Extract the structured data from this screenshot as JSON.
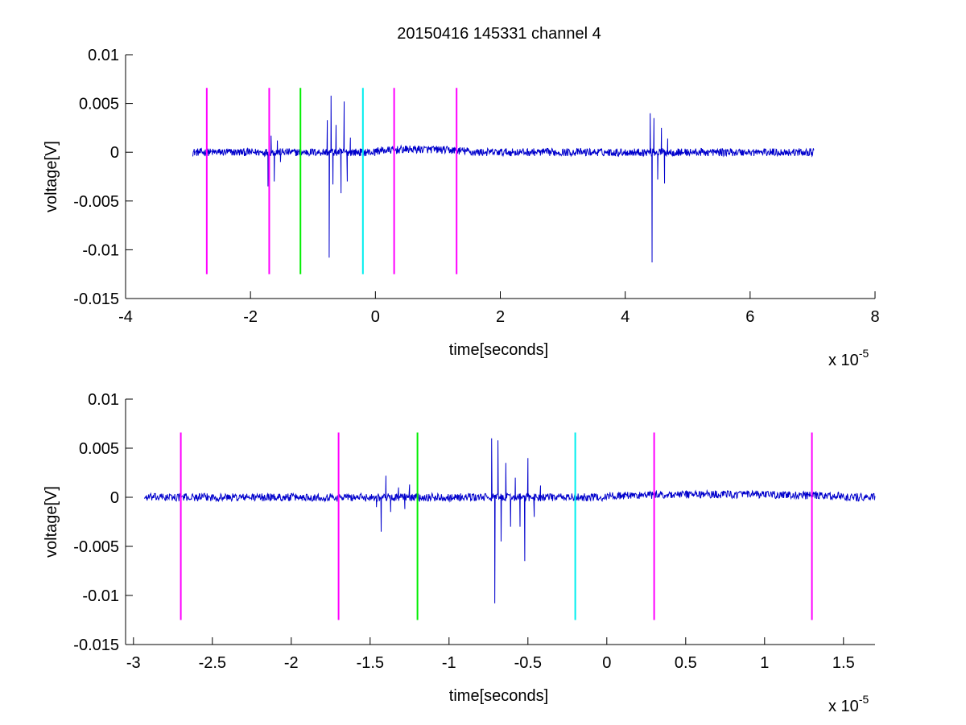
{
  "title": "20150416 145331 channel 4",
  "colors": {
    "signal": "#0000cc",
    "magenta": "#ff00ff",
    "green": "#00ee00",
    "cyan": "#00eeee",
    "axes": "#000000"
  },
  "chart_data": [
    {
      "type": "line",
      "title": "20150416 145331 channel 4",
      "xlabel": "time[seconds]",
      "ylabel": "voltage[V]",
      "x_multiplier_label": "x 10",
      "x_multiplier_exponent": "-5",
      "xlim": [
        -4,
        8
      ],
      "ylim": [
        -0.015,
        0.01
      ],
      "xticks": [
        -4,
        -2,
        0,
        2,
        4,
        6,
        8
      ],
      "xtick_labels": [
        "-4",
        "-2",
        "0",
        "2",
        "4",
        "6",
        "8"
      ],
      "yticks": [
        0.01,
        0.005,
        0,
        -0.005,
        -0.01,
        -0.015
      ],
      "ytick_labels": [
        "0.01",
        "0.005",
        "0",
        "-0.005",
        "-0.01",
        "-0.015"
      ],
      "grid": false,
      "signal_range": [
        -2.93,
        7.02
      ],
      "bursts": [
        {
          "x": -1.6,
          "peaks": [
            [
              -1.72,
              -0.0035
            ],
            [
              -1.67,
              0.0017
            ],
            [
              -1.62,
              -0.003
            ],
            [
              -1.57,
              0.0012
            ],
            [
              -1.52,
              -0.001
            ]
          ]
        },
        {
          "x": -0.7,
          "peaks": [
            [
              -0.77,
              0.0033
            ],
            [
              -0.74,
              -0.0108
            ],
            [
              -0.71,
              0.0058
            ],
            [
              -0.68,
              -0.0033
            ],
            [
              -0.63,
              0.0028
            ],
            [
              -0.55,
              -0.0042
            ],
            [
              -0.5,
              0.0052
            ],
            [
              -0.45,
              -0.003
            ],
            [
              -0.4,
              0.0015
            ]
          ]
        },
        {
          "x": 4.45,
          "peaks": [
            [
              4.4,
              0.004
            ],
            [
              4.43,
              -0.0113
            ],
            [
              4.46,
              0.0035
            ],
            [
              4.52,
              -0.0028
            ],
            [
              4.58,
              0.0025
            ],
            [
              4.63,
              -0.0032
            ],
            [
              4.68,
              0.0014
            ]
          ]
        }
      ],
      "markers": [
        {
          "x": -2.7,
          "color": "magenta",
          "y": [
            -0.0125,
            0.0066
          ]
        },
        {
          "x": -1.7,
          "color": "magenta",
          "y": [
            -0.0125,
            0.0066
          ]
        },
        {
          "x": -1.2,
          "color": "green",
          "y": [
            -0.0125,
            0.0066
          ]
        },
        {
          "x": -0.2,
          "color": "cyan",
          "y": [
            -0.0125,
            0.0066
          ]
        },
        {
          "x": 0.3,
          "color": "magenta",
          "y": [
            -0.0125,
            0.0066
          ]
        },
        {
          "x": 1.3,
          "color": "magenta",
          "y": [
            -0.0125,
            0.0066
          ]
        }
      ]
    },
    {
      "type": "line",
      "xlabel": "time[seconds]",
      "ylabel": "voltage[V]",
      "x_multiplier_label": "x 10",
      "x_multiplier_exponent": "-5",
      "xlim": [
        -3.05,
        1.7
      ],
      "ylim": [
        -0.015,
        0.01
      ],
      "xticks": [
        -3,
        -2.5,
        -2,
        -1.5,
        -1,
        -0.5,
        0,
        0.5,
        1,
        1.5
      ],
      "xtick_labels": [
        "-3",
        "-2.5",
        "-2",
        "-1.5",
        "-1",
        "-0.5",
        "0",
        "0.5",
        "1",
        "1.5"
      ],
      "yticks": [
        0.01,
        0.005,
        0,
        -0.005,
        -0.01,
        -0.015
      ],
      "ytick_labels": [
        "0.01",
        "0.005",
        "0",
        "-0.005",
        "-0.01",
        "-0.015"
      ],
      "grid": false,
      "signal_range": [
        -2.93,
        1.7
      ],
      "bursts": [
        {
          "x": -1.4,
          "peaks": [
            [
              -1.46,
              -0.001
            ],
            [
              -1.43,
              -0.0035
            ],
            [
              -1.4,
              0.0022
            ],
            [
              -1.37,
              -0.0015
            ],
            [
              -1.32,
              0.001
            ],
            [
              -1.28,
              -0.0012
            ],
            [
              -1.25,
              0.0013
            ]
          ]
        },
        {
          "x": -0.65,
          "peaks": [
            [
              -0.73,
              0.006
            ],
            [
              -0.71,
              -0.0108
            ],
            [
              -0.69,
              0.0058
            ],
            [
              -0.67,
              -0.0045
            ],
            [
              -0.64,
              0.0035
            ],
            [
              -0.61,
              -0.003
            ],
            [
              -0.58,
              0.002
            ],
            [
              -0.55,
              -0.003
            ],
            [
              -0.52,
              -0.0065
            ],
            [
              -0.5,
              0.004
            ],
            [
              -0.46,
              -0.002
            ],
            [
              -0.42,
              0.0012
            ]
          ]
        }
      ],
      "markers": [
        {
          "x": -2.7,
          "color": "magenta",
          "y": [
            -0.0125,
            0.0066
          ]
        },
        {
          "x": -1.7,
          "color": "magenta",
          "y": [
            -0.0125,
            0.0066
          ]
        },
        {
          "x": -1.2,
          "color": "green",
          "y": [
            -0.0125,
            0.0066
          ]
        },
        {
          "x": -0.2,
          "color": "cyan",
          "y": [
            -0.0125,
            0.0066
          ]
        },
        {
          "x": 0.3,
          "color": "magenta",
          "y": [
            -0.0125,
            0.0066
          ]
        },
        {
          "x": 1.3,
          "color": "magenta",
          "y": [
            -0.0125,
            0.0066
          ]
        }
      ]
    }
  ]
}
